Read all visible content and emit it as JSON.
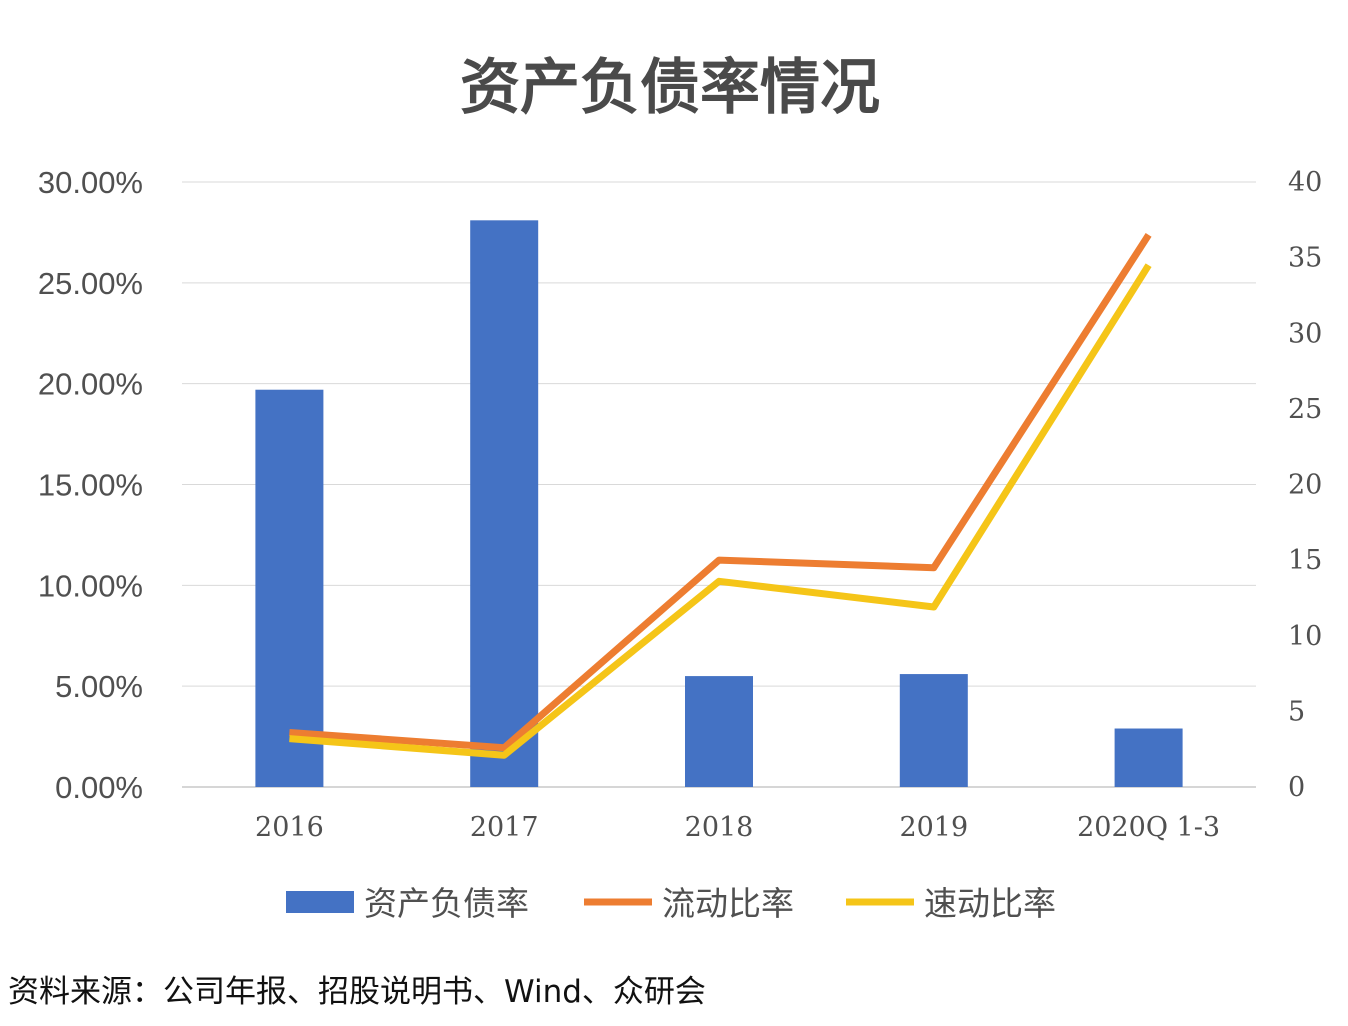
{
  "chart_data": {
    "type": "bar",
    "title": "资产负债率情况",
    "categories": [
      "2016",
      "2017",
      "2018",
      "2019",
      "2020Q 1-3"
    ],
    "series": [
      {
        "name": "资产负债率",
        "type": "bar",
        "axis": "left",
        "color": "#4472C4",
        "values": [
          19.7,
          28.1,
          5.5,
          5.6,
          2.9
        ]
      },
      {
        "name": "流动比率",
        "type": "line",
        "axis": "right",
        "color": "#ED7D31",
        "values": [
          3.6,
          2.6,
          15.0,
          14.5,
          36.5
        ]
      },
      {
        "name": "速动比率",
        "type": "line",
        "axis": "right",
        "color": "#F5C518",
        "values": [
          3.2,
          2.1,
          13.6,
          11.9,
          34.5
        ]
      }
    ],
    "y_left": {
      "ticks": [
        "0.00%",
        "5.00%",
        "10.00%",
        "15.00%",
        "20.00%",
        "25.00%",
        "30.00%"
      ],
      "range": [
        0,
        30
      ]
    },
    "y_right": {
      "ticks": [
        "0",
        "5",
        "10",
        "15",
        "20",
        "25",
        "30",
        "35",
        "40"
      ],
      "range": [
        0,
        40
      ]
    },
    "grid": true,
    "legend_position": "bottom"
  },
  "source_text": "资料来源：公司年报、招股说明书、Wind、众研会"
}
